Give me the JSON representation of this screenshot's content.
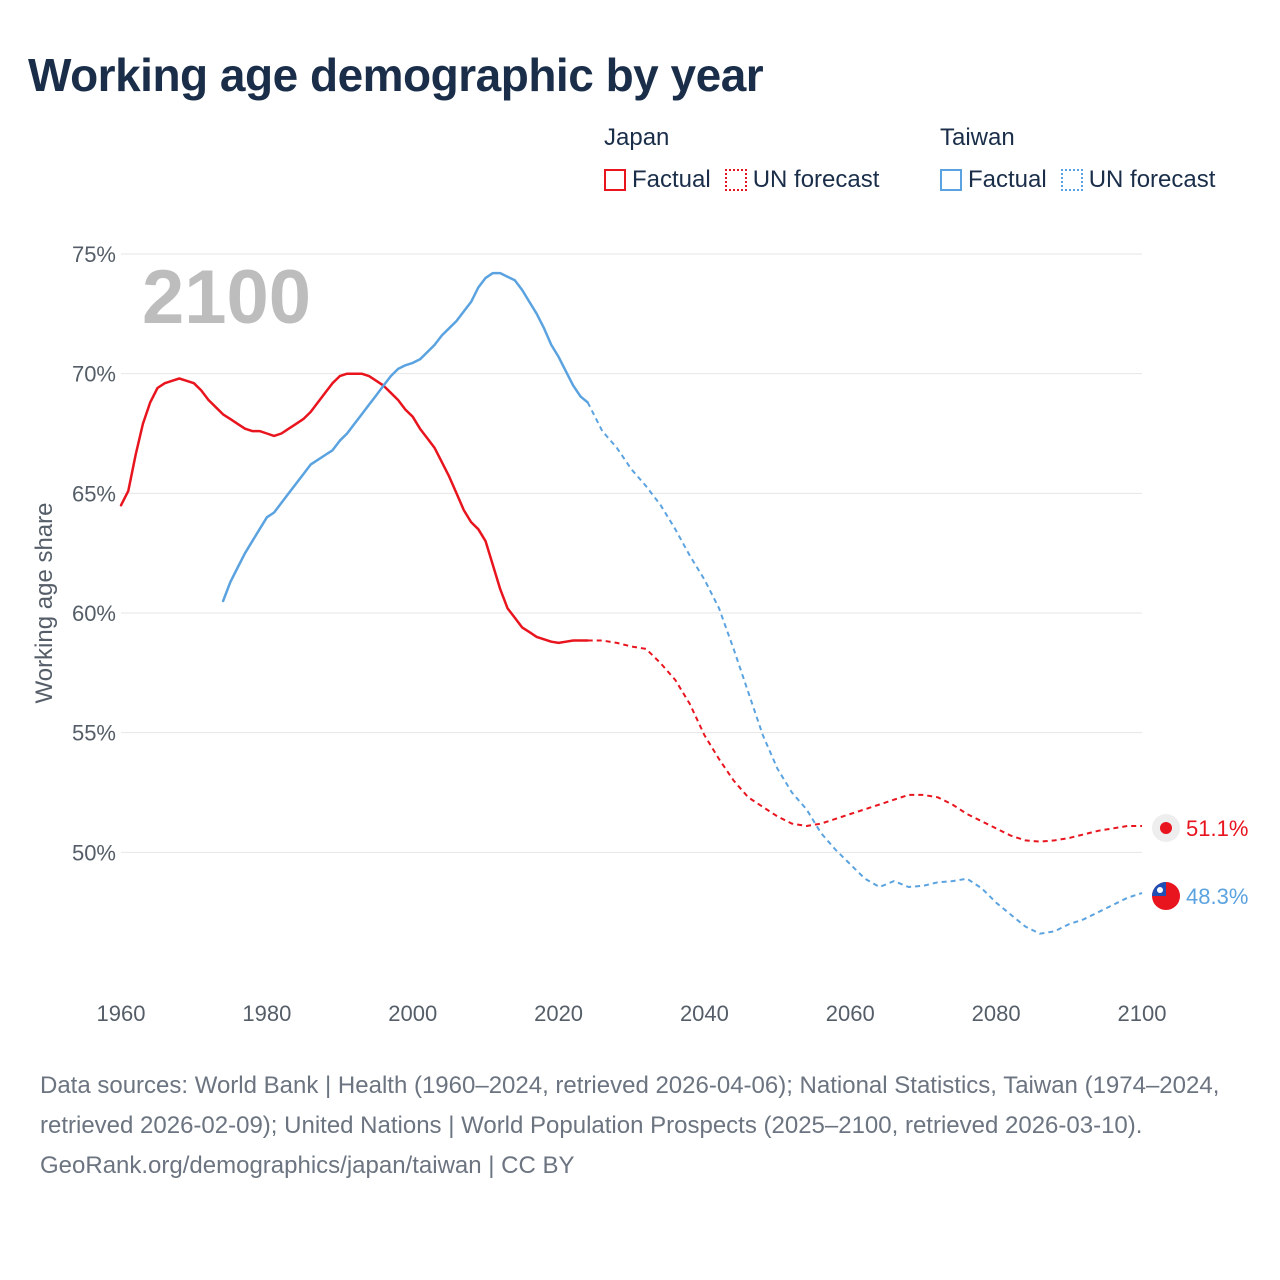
{
  "title": "Working age demographic by year",
  "legend": {
    "japan": {
      "name": "Japan",
      "factual": "Factual",
      "forecast": "UN forecast",
      "color": "#e8141e"
    },
    "taiwan": {
      "name": "Taiwan",
      "factual": "Factual",
      "forecast": "UN forecast",
      "color": "#5ba3e0"
    }
  },
  "year_overlay": "2100",
  "footer": {
    "sources": "Data sources: World Bank | Health (1960–2024, retrieved 2026-04-06); National Statistics, Taiwan (1974–2024, retrieved 2026-02-09); United Nations | World Population Prospects (2025–2100, retrieved 2026-03-10).",
    "credit": "GeoRank.org/demographics/japan/taiwan | CC BY"
  },
  "chart_data": {
    "type": "line",
    "title": "Working age demographic by year",
    "xlabel": "",
    "ylabel": "Working age share",
    "xlim": [
      1960,
      2100
    ],
    "ylim": [
      45,
      75
    ],
    "x_ticks": [
      1960,
      1980,
      2000,
      2020,
      2040,
      2060,
      2080,
      2100
    ],
    "y_ticks": [
      50,
      55,
      60,
      65,
      70,
      75
    ],
    "y_tick_labels": [
      "50%",
      "55%",
      "60%",
      "65%",
      "70%",
      "75%"
    ],
    "grid": true,
    "series": [
      {
        "name": "Japan",
        "color": "#e8141e",
        "end_label": "51.1%",
        "forecast_start": 2024,
        "points": [
          [
            1960,
            64.5
          ],
          [
            1961,
            65.1
          ],
          [
            1962,
            66.6
          ],
          [
            1963,
            67.9
          ],
          [
            1964,
            68.8
          ],
          [
            1965,
            69.4
          ],
          [
            1966,
            69.6
          ],
          [
            1967,
            69.7
          ],
          [
            1968,
            69.8
          ],
          [
            1969,
            69.7
          ],
          [
            1970,
            69.6
          ],
          [
            1971,
            69.3
          ],
          [
            1972,
            68.9
          ],
          [
            1973,
            68.6
          ],
          [
            1974,
            68.3
          ],
          [
            1975,
            68.1
          ],
          [
            1976,
            67.9
          ],
          [
            1977,
            67.7
          ],
          [
            1978,
            67.6
          ],
          [
            1979,
            67.6
          ],
          [
            1980,
            67.5
          ],
          [
            1981,
            67.4
          ],
          [
            1982,
            67.5
          ],
          [
            1983,
            67.7
          ],
          [
            1984,
            67.9
          ],
          [
            1985,
            68.1
          ],
          [
            1986,
            68.4
          ],
          [
            1987,
            68.8
          ],
          [
            1988,
            69.2
          ],
          [
            1989,
            69.6
          ],
          [
            1990,
            69.9
          ],
          [
            1991,
            70.0
          ],
          [
            1992,
            70.0
          ],
          [
            1993,
            70.0
          ],
          [
            1994,
            69.9
          ],
          [
            1995,
            69.7
          ],
          [
            1996,
            69.5
          ],
          [
            1997,
            69.2
          ],
          [
            1998,
            68.9
          ],
          [
            1999,
            68.5
          ],
          [
            2000,
            68.2
          ],
          [
            2001,
            67.7
          ],
          [
            2002,
            67.3
          ],
          [
            2003,
            66.9
          ],
          [
            2004,
            66.3
          ],
          [
            2005,
            65.7
          ],
          [
            2006,
            65.0
          ],
          [
            2007,
            64.3
          ],
          [
            2008,
            63.8
          ],
          [
            2009,
            63.5
          ],
          [
            2010,
            63.0
          ],
          [
            2011,
            62.0
          ],
          [
            2012,
            61.0
          ],
          [
            2013,
            60.2
          ],
          [
            2014,
            59.8
          ],
          [
            2015,
            59.4
          ],
          [
            2016,
            59.2
          ],
          [
            2017,
            59.0
          ],
          [
            2018,
            58.9
          ],
          [
            2019,
            58.8
          ],
          [
            2020,
            58.75
          ],
          [
            2021,
            58.8
          ],
          [
            2022,
            58.85
          ],
          [
            2023,
            58.85
          ],
          [
            2024,
            58.85
          ],
          [
            2026,
            58.85
          ],
          [
            2028,
            58.75
          ],
          [
            2030,
            58.6
          ],
          [
            2032,
            58.5
          ],
          [
            2034,
            57.9
          ],
          [
            2036,
            57.2
          ],
          [
            2038,
            56.2
          ],
          [
            2040,
            54.9
          ],
          [
            2042,
            53.9
          ],
          [
            2044,
            53.0
          ],
          [
            2046,
            52.3
          ],
          [
            2048,
            51.9
          ],
          [
            2050,
            51.5
          ],
          [
            2052,
            51.2
          ],
          [
            2054,
            51.1
          ],
          [
            2056,
            51.2
          ],
          [
            2058,
            51.4
          ],
          [
            2060,
            51.6
          ],
          [
            2062,
            51.8
          ],
          [
            2064,
            52.0
          ],
          [
            2066,
            52.2
          ],
          [
            2068,
            52.4
          ],
          [
            2070,
            52.4
          ],
          [
            2072,
            52.3
          ],
          [
            2074,
            52.0
          ],
          [
            2076,
            51.6
          ],
          [
            2078,
            51.3
          ],
          [
            2080,
            51.0
          ],
          [
            2082,
            50.7
          ],
          [
            2084,
            50.5
          ],
          [
            2086,
            50.45
          ],
          [
            2088,
            50.5
          ],
          [
            2090,
            50.6
          ],
          [
            2092,
            50.75
          ],
          [
            2094,
            50.9
          ],
          [
            2096,
            51.0
          ],
          [
            2098,
            51.1
          ],
          [
            2100,
            51.1
          ]
        ]
      },
      {
        "name": "Taiwan",
        "color": "#5ba3e0",
        "end_label": "48.3%",
        "forecast_start": 2024,
        "points": [
          [
            1974,
            60.5
          ],
          [
            1975,
            61.3
          ],
          [
            1976,
            61.9
          ],
          [
            1977,
            62.5
          ],
          [
            1978,
            63.0
          ],
          [
            1979,
            63.5
          ],
          [
            1980,
            64.0
          ],
          [
            1981,
            64.2
          ],
          [
            1982,
            64.6
          ],
          [
            1983,
            65.0
          ],
          [
            1984,
            65.4
          ],
          [
            1985,
            65.8
          ],
          [
            1986,
            66.2
          ],
          [
            1987,
            66.4
          ],
          [
            1988,
            66.6
          ],
          [
            1989,
            66.8
          ],
          [
            1990,
            67.2
          ],
          [
            1991,
            67.5
          ],
          [
            1992,
            67.9
          ],
          [
            1993,
            68.3
          ],
          [
            1994,
            68.7
          ],
          [
            1995,
            69.1
          ],
          [
            1996,
            69.5
          ],
          [
            1997,
            69.9
          ],
          [
            1998,
            70.2
          ],
          [
            1999,
            70.35
          ],
          [
            2000,
            70.45
          ],
          [
            2001,
            70.6
          ],
          [
            2002,
            70.9
          ],
          [
            2003,
            71.2
          ],
          [
            2004,
            71.6
          ],
          [
            2005,
            71.9
          ],
          [
            2006,
            72.2
          ],
          [
            2007,
            72.6
          ],
          [
            2008,
            73.0
          ],
          [
            2009,
            73.6
          ],
          [
            2010,
            74.0
          ],
          [
            2011,
            74.2
          ],
          [
            2012,
            74.2
          ],
          [
            2013,
            74.05
          ],
          [
            2014,
            73.9
          ],
          [
            2015,
            73.5
          ],
          [
            2016,
            73.0
          ],
          [
            2017,
            72.5
          ],
          [
            2018,
            71.9
          ],
          [
            2019,
            71.2
          ],
          [
            2020,
            70.7
          ],
          [
            2021,
            70.1
          ],
          [
            2022,
            69.5
          ],
          [
            2023,
            69.05
          ],
          [
            2024,
            68.8
          ],
          [
            2026,
            67.6
          ],
          [
            2028,
            66.9
          ],
          [
            2030,
            66.0
          ],
          [
            2032,
            65.3
          ],
          [
            2034,
            64.5
          ],
          [
            2036,
            63.5
          ],
          [
            2038,
            62.4
          ],
          [
            2040,
            61.4
          ],
          [
            2042,
            60.2
          ],
          [
            2044,
            58.5
          ],
          [
            2046,
            56.7
          ],
          [
            2048,
            54.9
          ],
          [
            2050,
            53.5
          ],
          [
            2052,
            52.5
          ],
          [
            2054,
            51.8
          ],
          [
            2056,
            50.8
          ],
          [
            2058,
            50.1
          ],
          [
            2060,
            49.5
          ],
          [
            2062,
            48.9
          ],
          [
            2064,
            48.55
          ],
          [
            2066,
            48.8
          ],
          [
            2068,
            48.55
          ],
          [
            2070,
            48.6
          ],
          [
            2072,
            48.75
          ],
          [
            2074,
            48.8
          ],
          [
            2076,
            48.9
          ],
          [
            2078,
            48.5
          ],
          [
            2080,
            47.9
          ],
          [
            2082,
            47.4
          ],
          [
            2084,
            46.9
          ],
          [
            2086,
            46.6
          ],
          [
            2088,
            46.7
          ],
          [
            2090,
            47.0
          ],
          [
            2092,
            47.2
          ],
          [
            2094,
            47.5
          ],
          [
            2096,
            47.8
          ],
          [
            2098,
            48.1
          ],
          [
            2100,
            48.3
          ]
        ]
      }
    ]
  }
}
